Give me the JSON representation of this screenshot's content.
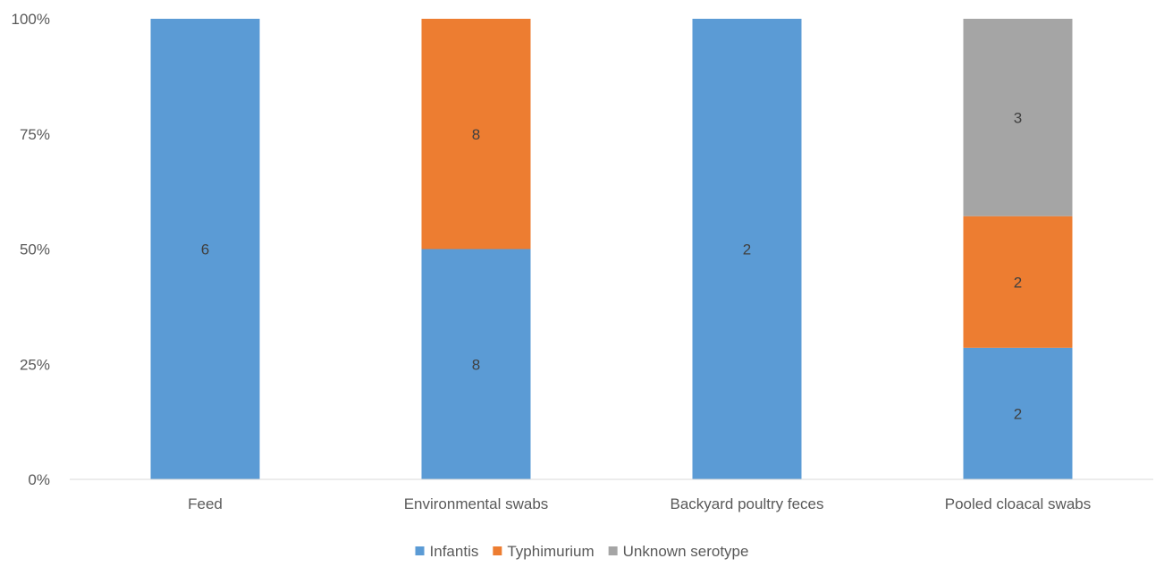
{
  "chart_data": {
    "type": "bar",
    "stacked": true,
    "percent_stacked": true,
    "categories": [
      "Feed",
      "Environmental swabs",
      "Backyard poultry feces",
      "Pooled cloacal swabs"
    ],
    "series": [
      {
        "name": "Infantis",
        "values": [
          6,
          8,
          2,
          2
        ],
        "color": "#5B9BD5"
      },
      {
        "name": "Typhimurium",
        "values": [
          0,
          8,
          0,
          2
        ],
        "color": "#ED7D31"
      },
      {
        "name": "Unknown serotype",
        "values": [
          0,
          0,
          0,
          3
        ],
        "color": "#A5A5A5"
      }
    ],
    "yticks": [
      "0%",
      "25%",
      "50%",
      "75%",
      "100%"
    ],
    "ylim": [
      0,
      100
    ],
    "grid": false,
    "legend_position": "bottom"
  }
}
